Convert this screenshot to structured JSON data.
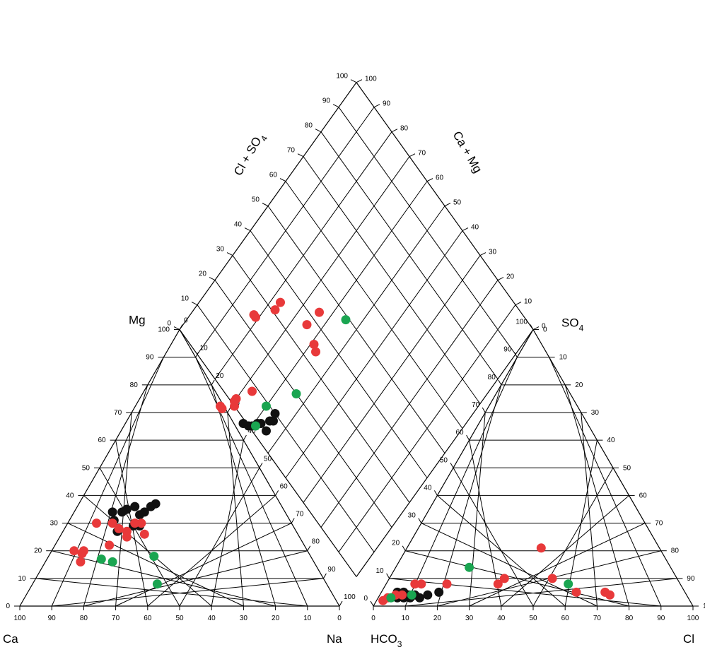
{
  "chart_data": {
    "type": "scatter",
    "subtype": "piper-diagram",
    "colors": {
      "series_1": "#111111",
      "series_2": "#e8393a",
      "series_3": "#1aa551"
    },
    "cation_triangle": {
      "corners": {
        "bottom_left": "Ca",
        "bottom_right": "Na",
        "top": "Mg"
      },
      "bottom_ticks": [
        "100",
        "90",
        "80",
        "70",
        "60",
        "50",
        "40",
        "30",
        "20",
        "10",
        "0"
      ],
      "left_ticks": [
        "0",
        "10",
        "20",
        "30",
        "40",
        "50",
        "60",
        "70",
        "80",
        "90",
        "100"
      ],
      "right_ticks": [
        "0",
        "10",
        "20",
        "30",
        "40",
        "50",
        "60",
        "70",
        "80",
        "90",
        "100"
      ]
    },
    "anion_triangle": {
      "corners": {
        "bottom_left": "HCO",
        "bottom_left_sub": "3",
        "bottom_right": "Cl",
        "top": "SO",
        "top_sub": "4"
      },
      "bottom_ticks": [
        "0",
        "10",
        "20",
        "30",
        "40",
        "50",
        "60",
        "70",
        "80",
        "90",
        "100"
      ],
      "left_ticks": [
        "100",
        "90",
        "80",
        "70",
        "60",
        "50",
        "40",
        "30",
        "20",
        "10",
        "0"
      ],
      "right_ticks": [
        "0",
        "10",
        "20",
        "30",
        "40",
        "50",
        "60",
        "70",
        "80",
        "90",
        "100"
      ]
    },
    "diamond": {
      "left_label": "Cl + SO",
      "left_label_sub": "4",
      "right_label": "Ca + Mg",
      "ticks": [
        "0",
        "10",
        "20",
        "30",
        "40",
        "50",
        "60",
        "70",
        "80",
        "90",
        "100"
      ]
    },
    "series": [
      {
        "color_key": "series_1",
        "cation": [
          [
            24,
            37
          ],
          [
            23,
            36
          ],
          [
            22,
            34
          ],
          [
            21,
            33
          ],
          [
            23,
            29
          ],
          [
            21,
            29
          ],
          [
            18,
            36
          ],
          [
            16,
            35
          ],
          [
            15,
            34
          ],
          [
            14,
            31
          ],
          [
            12,
            34
          ],
          [
            17,
            27
          ]
        ],
        "anion": [
          [
            5,
            5
          ],
          [
            6,
            3
          ],
          [
            8,
            3
          ],
          [
            9,
            4
          ],
          [
            10,
            3
          ],
          [
            11,
            4
          ],
          [
            13,
            3
          ],
          [
            15,
            4
          ],
          [
            18,
            5
          ],
          [
            7,
            5
          ]
        ],
        "diamond": [
          [
            -1,
            63
          ],
          [
            0,
            61
          ],
          [
            1,
            60
          ],
          [
            3,
            59
          ],
          [
            4,
            58
          ],
          [
            4,
            55
          ],
          [
            7,
            56
          ],
          [
            8,
            55
          ],
          [
            10,
            56
          ]
        ]
      },
      {
        "color_key": "series_2",
        "cation": [
          [
            7,
            20
          ],
          [
            10,
            20
          ],
          [
            10,
            19
          ],
          [
            11,
            16
          ],
          [
            23,
            30
          ],
          [
            20,
            27
          ],
          [
            21,
            25
          ],
          [
            17,
            28
          ],
          [
            17,
            22
          ],
          [
            14,
            30
          ],
          [
            9,
            30
          ],
          [
            21,
            30
          ],
          [
            26,
            26
          ]
        ],
        "anion": [
          [
            2,
            2
          ],
          [
            3,
            3
          ],
          [
            5,
            4
          ],
          [
            7,
            4
          ],
          [
            9,
            8
          ],
          [
            11,
            8
          ],
          [
            19,
            8
          ],
          [
            35,
            8
          ],
          [
            36,
            10
          ],
          [
            42,
            21
          ],
          [
            51,
            10
          ],
          [
            61,
            5
          ],
          [
            70,
            5
          ],
          [
            72,
            4
          ]
        ],
        "diamond": [
          [
            -4,
            72
          ],
          [
            -4,
            73
          ],
          [
            0,
            69
          ],
          [
            1,
            70
          ],
          [
            2,
            70
          ],
          [
            8,
            67
          ],
          [
            24,
            81
          ],
          [
            24,
            82
          ],
          [
            31,
            77
          ],
          [
            34,
            77
          ],
          [
            43,
            64
          ],
          [
            34,
            57
          ],
          [
            35,
            59
          ],
          [
            37,
            65
          ]
        ]
      },
      {
        "color_key": "series_3",
        "cation": [
          [
            17,
            17
          ],
          [
            21,
            16
          ],
          [
            33,
            18
          ],
          [
            39,
            8
          ]
        ],
        "anion": [
          [
            4,
            3
          ],
          [
            10,
            4
          ],
          [
            23,
            14
          ],
          [
            57,
            8
          ]
        ],
        "diamond": [
          [
            2,
            59
          ],
          [
            9,
            60
          ],
          [
            20,
            54
          ],
          [
            49,
            55
          ]
        ]
      }
    ]
  }
}
